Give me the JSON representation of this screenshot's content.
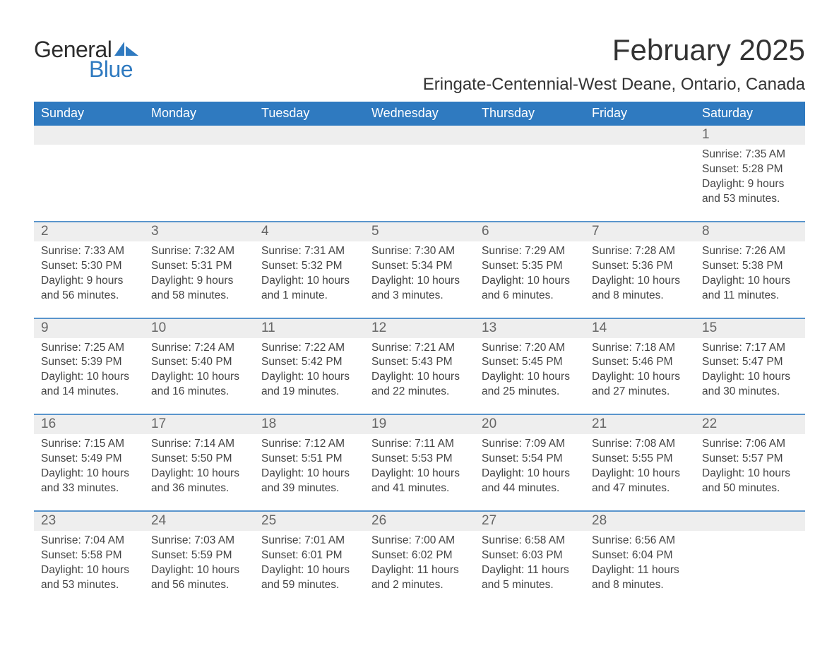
{
  "logo": {
    "word1": "General",
    "word2": "Blue",
    "sail_color": "#2f7ac0"
  },
  "title": "February 2025",
  "location": "Eringate-Centennial-West Deane, Ontario, Canada",
  "colors": {
    "header_blue": "#2f7ac0",
    "stripe_grey": "#eeeeee",
    "rule_blue": "#5a95cc",
    "text_grey": "#444444",
    "daynum_grey": "#666666",
    "background": "#ffffff",
    "weekday_text": "#ffffff"
  },
  "typography": {
    "title_fontsize": 42,
    "location_fontsize": 24,
    "weekday_fontsize": 18,
    "daynum_fontsize": 19,
    "body_fontsize": 15.5
  },
  "weekdays": [
    "Sunday",
    "Monday",
    "Tuesday",
    "Wednesday",
    "Thursday",
    "Friday",
    "Saturday"
  ],
  "weeks": [
    [
      null,
      null,
      null,
      null,
      null,
      null,
      {
        "n": 1,
        "sunrise": "7:35 AM",
        "sunset": "5:28 PM",
        "daylight": "9 hours and 53 minutes."
      }
    ],
    [
      {
        "n": 2,
        "sunrise": "7:33 AM",
        "sunset": "5:30 PM",
        "daylight": "9 hours and 56 minutes."
      },
      {
        "n": 3,
        "sunrise": "7:32 AM",
        "sunset": "5:31 PM",
        "daylight": "9 hours and 58 minutes."
      },
      {
        "n": 4,
        "sunrise": "7:31 AM",
        "sunset": "5:32 PM",
        "daylight": "10 hours and 1 minute."
      },
      {
        "n": 5,
        "sunrise": "7:30 AM",
        "sunset": "5:34 PM",
        "daylight": "10 hours and 3 minutes."
      },
      {
        "n": 6,
        "sunrise": "7:29 AM",
        "sunset": "5:35 PM",
        "daylight": "10 hours and 6 minutes."
      },
      {
        "n": 7,
        "sunrise": "7:28 AM",
        "sunset": "5:36 PM",
        "daylight": "10 hours and 8 minutes."
      },
      {
        "n": 8,
        "sunrise": "7:26 AM",
        "sunset": "5:38 PM",
        "daylight": "10 hours and 11 minutes."
      }
    ],
    [
      {
        "n": 9,
        "sunrise": "7:25 AM",
        "sunset": "5:39 PM",
        "daylight": "10 hours and 14 minutes."
      },
      {
        "n": 10,
        "sunrise": "7:24 AM",
        "sunset": "5:40 PM",
        "daylight": "10 hours and 16 minutes."
      },
      {
        "n": 11,
        "sunrise": "7:22 AM",
        "sunset": "5:42 PM",
        "daylight": "10 hours and 19 minutes."
      },
      {
        "n": 12,
        "sunrise": "7:21 AM",
        "sunset": "5:43 PM",
        "daylight": "10 hours and 22 minutes."
      },
      {
        "n": 13,
        "sunrise": "7:20 AM",
        "sunset": "5:45 PM",
        "daylight": "10 hours and 25 minutes."
      },
      {
        "n": 14,
        "sunrise": "7:18 AM",
        "sunset": "5:46 PM",
        "daylight": "10 hours and 27 minutes."
      },
      {
        "n": 15,
        "sunrise": "7:17 AM",
        "sunset": "5:47 PM",
        "daylight": "10 hours and 30 minutes."
      }
    ],
    [
      {
        "n": 16,
        "sunrise": "7:15 AM",
        "sunset": "5:49 PM",
        "daylight": "10 hours and 33 minutes."
      },
      {
        "n": 17,
        "sunrise": "7:14 AM",
        "sunset": "5:50 PM",
        "daylight": "10 hours and 36 minutes."
      },
      {
        "n": 18,
        "sunrise": "7:12 AM",
        "sunset": "5:51 PM",
        "daylight": "10 hours and 39 minutes."
      },
      {
        "n": 19,
        "sunrise": "7:11 AM",
        "sunset": "5:53 PM",
        "daylight": "10 hours and 41 minutes."
      },
      {
        "n": 20,
        "sunrise": "7:09 AM",
        "sunset": "5:54 PM",
        "daylight": "10 hours and 44 minutes."
      },
      {
        "n": 21,
        "sunrise": "7:08 AM",
        "sunset": "5:55 PM",
        "daylight": "10 hours and 47 minutes."
      },
      {
        "n": 22,
        "sunrise": "7:06 AM",
        "sunset": "5:57 PM",
        "daylight": "10 hours and 50 minutes."
      }
    ],
    [
      {
        "n": 23,
        "sunrise": "7:04 AM",
        "sunset": "5:58 PM",
        "daylight": "10 hours and 53 minutes."
      },
      {
        "n": 24,
        "sunrise": "7:03 AM",
        "sunset": "5:59 PM",
        "daylight": "10 hours and 56 minutes."
      },
      {
        "n": 25,
        "sunrise": "7:01 AM",
        "sunset": "6:01 PM",
        "daylight": "10 hours and 59 minutes."
      },
      {
        "n": 26,
        "sunrise": "7:00 AM",
        "sunset": "6:02 PM",
        "daylight": "11 hours and 2 minutes."
      },
      {
        "n": 27,
        "sunrise": "6:58 AM",
        "sunset": "6:03 PM",
        "daylight": "11 hours and 5 minutes."
      },
      {
        "n": 28,
        "sunrise": "6:56 AM",
        "sunset": "6:04 PM",
        "daylight": "11 hours and 8 minutes."
      },
      null
    ]
  ],
  "labels": {
    "sunrise_prefix": "Sunrise: ",
    "sunset_prefix": "Sunset: ",
    "daylight_prefix": "Daylight: "
  }
}
